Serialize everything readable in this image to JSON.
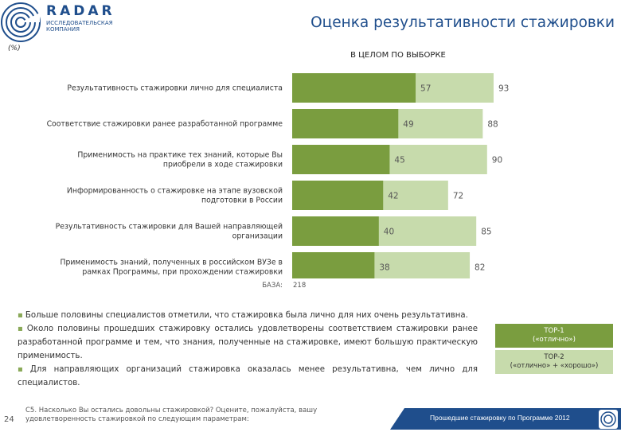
{
  "header": {
    "logo_name": "RADAR",
    "logo_subtitle": "ИССЛЕДОВАТЕЛЬСКАЯ КОМПАНИЯ",
    "title": "Оценка результативности стажировки",
    "unit": "(%)"
  },
  "chart_data": {
    "type": "bar",
    "orientation": "horizontal",
    "title": "В ЦЕЛОМ ПО ВЫБОРКЕ",
    "categories": [
      "Результативность стажировки лично для специалиста",
      "Соответствие стажировки ранее разработанной программе",
      "Применимость на практике тех знаний, которые Вы приобрели в ходе стажировки",
      "Информированность о стажировке на этапе вузовской подготовки в России",
      "Результативность стажировки для Вашей направляющей организации",
      "Применимость знаний, полученных в российском ВУЗе в рамках Программы, при прохождении стажировки"
    ],
    "category_lines": [
      [
        "Результативность стажировки лично для специалиста"
      ],
      [
        "Соответствие стажировки ранее разработанной программе"
      ],
      [
        "Применимость на практике тех знаний, которые Вы",
        "приобрели в ходе стажировки"
      ],
      [
        "Информированность о стажировке на этапе вузовской",
        "подготовки в России"
      ],
      [
        "Результативность стажировки для Вашей направляющей",
        "организации"
      ],
      [
        "Применимость знаний, полученных в российском ВУЗе в",
        "рамках Программы, при прохождении стажировки"
      ]
    ],
    "series": [
      {
        "name": "TOP-1 («отлично»)",
        "color": "#7a9d3f",
        "values": [
          57,
          49,
          45,
          42,
          40,
          38
        ]
      },
      {
        "name": "TOP-2 («отлично» + «хорошо»)",
        "color": "#c7dbac",
        "values": [
          93,
          88,
          90,
          72,
          85,
          82
        ]
      }
    ],
    "xlim": [
      0,
      100
    ],
    "base_label": "БАЗА:",
    "base_value": "218"
  },
  "notes": [
    "Больше половины специалистов отметили, что стажировка была лично для них очень результативна.",
    "Около половины прошедших стажировку остались удовлетворены соответствием стажировки ранее разработанной программе и тем, что знания, полученные на стажировке, имеют большую практическую применимость.",
    "Для направляющих организаций стажировка оказалась менее результативна, чем лично для специалистов."
  ],
  "legend": {
    "top1_title": "TOP-1",
    "top1_desc": "(«отлично»)",
    "top2_title": "TOP-2",
    "top2_desc": "(«отлично» + «хорошо»)"
  },
  "footer": {
    "page_number": "24",
    "question": "С5. Насколько Вы остались довольны стажировкой? Оцените, пожалуйста, вашу удовлетворенность стажировкой по следующим параметрам:",
    "caption": "Прошедшие стажировку по Программе 2012",
    "band_color": "#1f4e8c"
  }
}
